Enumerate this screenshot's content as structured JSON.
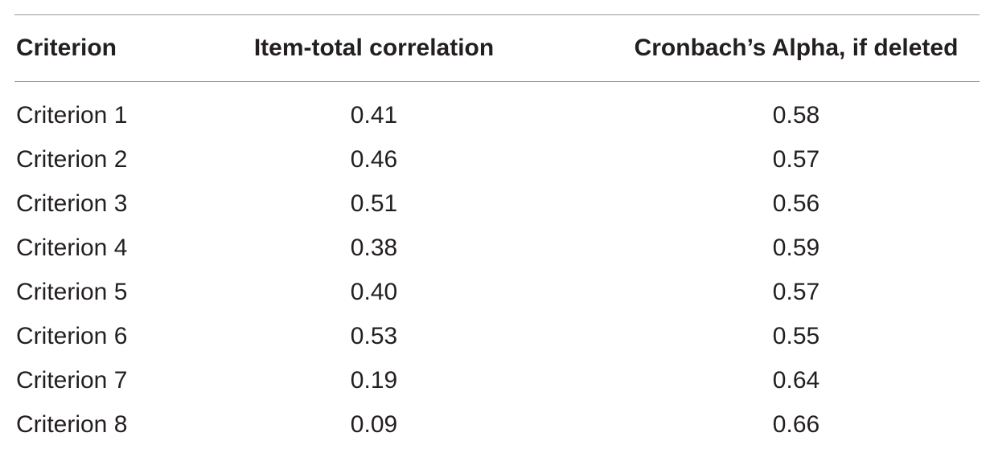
{
  "table": {
    "header": [
      "Criterion",
      "Item-total correlation",
      "Cronbach’s Alpha, if deleted"
    ],
    "rows": [
      [
        "Criterion 1",
        "0.41",
        "0.58"
      ],
      [
        "Criterion 2",
        "0.46",
        "0.57"
      ],
      [
        "Criterion 3",
        "0.51",
        "0.56"
      ],
      [
        "Criterion 4",
        "0.38",
        "0.59"
      ],
      [
        "Criterion 5",
        "0.40",
        "0.57"
      ],
      [
        "Criterion 6",
        "0.53",
        "0.55"
      ],
      [
        "Criterion 7",
        "0.19",
        "0.64"
      ],
      [
        "Criterion 8",
        "0.09",
        "0.66"
      ]
    ]
  }
}
